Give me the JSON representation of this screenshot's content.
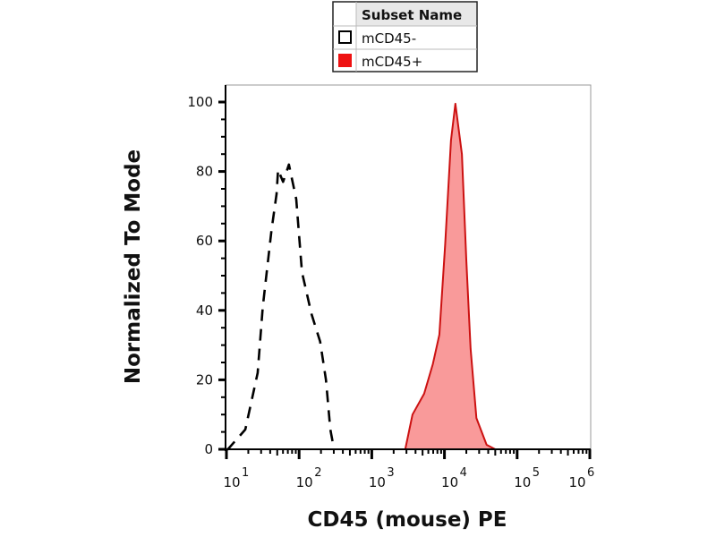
{
  "chart_data": {
    "type": "area",
    "xlabel": "CD45 (mouse) PE",
    "ylabel": "Normalized To Mode",
    "x_scale": "log10",
    "xlim_log10": [
      1,
      6
    ],
    "ylim": [
      0,
      100
    ],
    "x_tick_labels": [
      {
        "base": "10",
        "exp": "1",
        "log10": 1
      },
      {
        "base": "10",
        "exp": "2",
        "log10": 2
      },
      {
        "base": "10",
        "exp": "3",
        "log10": 3
      },
      {
        "base": "10",
        "exp": "4",
        "log10": 4
      },
      {
        "base": "10",
        "exp": "5",
        "log10": 5
      },
      {
        "base": "10",
        "exp": "6",
        "log10": 6
      }
    ],
    "y_ticks": [
      0,
      20,
      40,
      60,
      80,
      100
    ],
    "y_tick_labels": [
      "0",
      "20",
      "40",
      "60",
      "80",
      "100"
    ],
    "legend": {
      "title": "Subset Name",
      "placement": "top-center",
      "entries": [
        "mCD45-",
        "mCD45+"
      ]
    },
    "series": [
      {
        "name": "mCD45-",
        "style": "dashed",
        "color": "#000000",
        "fill": "none",
        "points_log10x_y": [
          [
            1.0,
            0
          ],
          [
            1.02,
            0
          ],
          [
            1.26,
            5.7
          ],
          [
            1.43,
            22
          ],
          [
            1.5,
            41
          ],
          [
            1.62,
            63
          ],
          [
            1.69,
            73.5
          ],
          [
            1.71,
            80.5
          ],
          [
            1.78,
            77
          ],
          [
            1.86,
            82
          ],
          [
            1.96,
            72
          ],
          [
            2.04,
            51
          ],
          [
            2.17,
            39
          ],
          [
            2.29,
            31
          ],
          [
            2.37,
            20
          ],
          [
            2.43,
            5.7
          ],
          [
            2.48,
            0
          ]
        ]
      },
      {
        "name": "mCD45+",
        "style": "solid",
        "color": "#cc1111",
        "fill": "#f99a9a",
        "points_log10x_y": [
          [
            1.0,
            0
          ],
          [
            3.46,
            0
          ],
          [
            3.56,
            10
          ],
          [
            3.72,
            16
          ],
          [
            3.84,
            24.5
          ],
          [
            3.93,
            33
          ],
          [
            4.01,
            59
          ],
          [
            4.09,
            89
          ],
          [
            4.15,
            99.5
          ],
          [
            4.24,
            85
          ],
          [
            4.3,
            54.6
          ],
          [
            4.36,
            29
          ],
          [
            4.44,
            9
          ],
          [
            4.58,
            1.3
          ],
          [
            4.7,
            0
          ],
          [
            6.0,
            0
          ]
        ]
      }
    ]
  }
}
